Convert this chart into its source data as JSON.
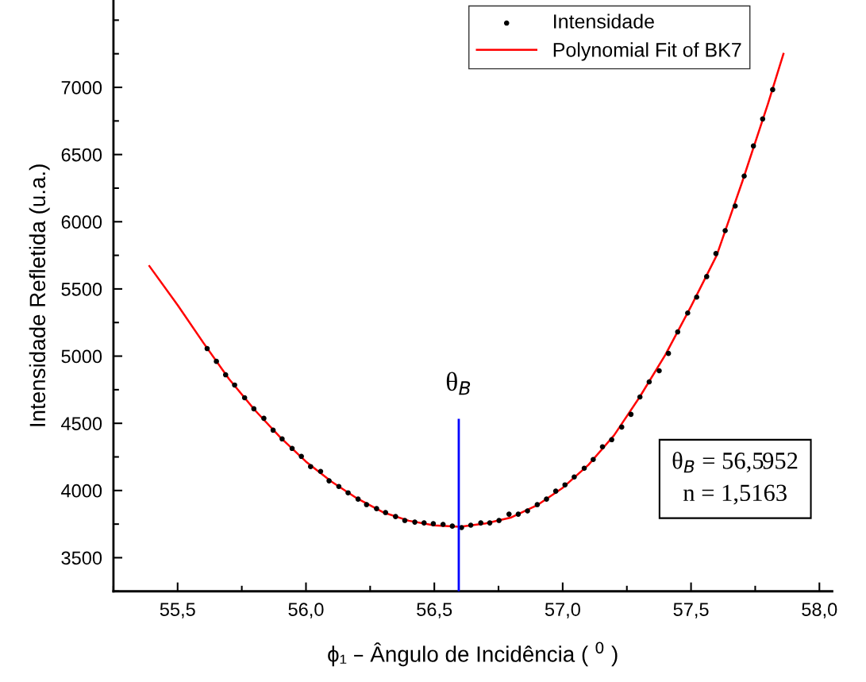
{
  "chart_data": {
    "type": "scatter",
    "xlabel": "ϕ₁ – Ângulo de Incidência ( $^{0}$ )",
    "ylabel": "Intensidade Refletida (u.a.)",
    "series": [
      {
        "name": "Intensidade",
        "type": "scatter",
        "color": "#000000",
        "marker": "circle",
        "x": [
          55.615,
          55.651,
          55.687,
          55.722,
          55.761,
          55.797,
          55.836,
          55.872,
          55.907,
          55.946,
          55.982,
          56.018,
          56.057,
          56.09,
          56.128,
          56.164,
          56.203,
          56.236,
          56.275,
          56.31,
          56.349,
          56.385,
          56.424,
          56.46,
          56.496,
          56.534,
          56.57,
          56.606,
          56.642,
          56.681,
          56.716,
          56.752,
          56.791,
          56.827,
          56.863,
          56.901,
          56.937,
          56.973,
          57.009,
          57.045,
          57.084,
          57.119,
          57.155,
          57.191,
          57.23,
          57.266,
          57.301,
          57.337,
          57.376,
          57.412,
          57.448,
          57.487,
          57.522,
          57.561,
          57.597,
          57.633,
          57.672,
          57.707,
          57.743,
          57.779,
          57.818
        ],
        "values": [
          5056,
          4961,
          4861,
          4785,
          4690,
          4608,
          4537,
          4449,
          4384,
          4313,
          4254,
          4178,
          4142,
          4072,
          4030,
          3983,
          3936,
          3895,
          3865,
          3836,
          3806,
          3777,
          3765,
          3759,
          3753,
          3748,
          3735,
          3724,
          3742,
          3759,
          3759,
          3777,
          3824,
          3824,
          3848,
          3895,
          3936,
          3995,
          4042,
          4101,
          4166,
          4231,
          4325,
          4378,
          4472,
          4567,
          4696,
          4808,
          4891,
          5020,
          5180,
          5321,
          5439,
          5592,
          5763,
          5934,
          6117,
          6340,
          6564,
          6765,
          6983
        ]
      },
      {
        "name": "Polynomial Fit of BK7",
        "type": "line",
        "color": "#ff0000",
        "marker": "none",
        "line_style": "solid",
        "x": [
          55.39,
          55.5,
          55.6,
          55.7,
          55.8,
          55.9,
          56.0,
          56.1,
          56.2,
          56.3,
          56.4,
          56.5,
          56.6,
          56.7,
          56.8,
          56.9,
          57.0,
          57.1,
          57.2,
          57.3,
          57.4,
          57.5,
          57.6,
          57.7,
          57.8,
          57.86
        ],
        "values": [
          5670,
          5380,
          5100,
          4830,
          4600,
          4395,
          4215,
          4065,
          3940,
          3838,
          3775,
          3740,
          3730,
          3755,
          3800,
          3890,
          4020,
          4190,
          4410,
          4696,
          5010,
          5370,
          5750,
          6300,
          6880,
          7250
        ]
      }
    ],
    "xlim": [
      55.25,
      58.05
    ],
    "xticks": [
      {
        "value": 55.5,
        "label": "55,5"
      },
      {
        "value": 56.0,
        "label": "56,0"
      },
      {
        "value": 56.5,
        "label": "56,5"
      },
      {
        "value": 57.0,
        "label": "57,0"
      },
      {
        "value": 57.5,
        "label": "57,5"
      },
      {
        "value": 58.0,
        "label": "58,0"
      }
    ],
    "ylim": [
      3250,
      7650
    ],
    "yticks": [
      3500,
      4000,
      4500,
      5000,
      5500,
      6000,
      6500,
      7000
    ],
    "ref_lines": [
      {
        "axis": "x",
        "value": 56.5952,
        "label": "θ$_{B}$",
        "color": "#0000ff"
      }
    ],
    "annotations": [
      "θ$_{B}$ = 56,5952",
      "n = 1,5163"
    ],
    "legend": "top",
    "grid": false
  }
}
